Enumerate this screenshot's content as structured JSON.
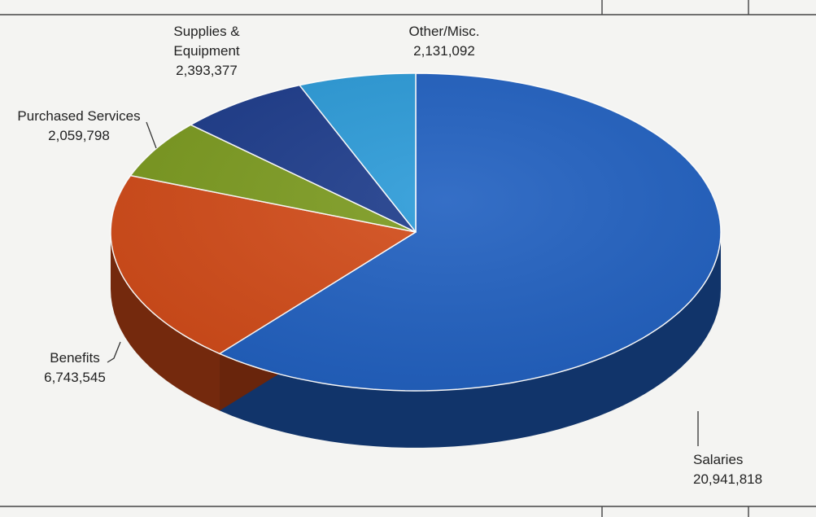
{
  "chart_data": {
    "type": "pie",
    "title": "",
    "three_d": true,
    "start_angle_deg": 90,
    "direction": "clockwise",
    "slices": [
      {
        "category": "Salaries",
        "value": 20941818,
        "value_label": "20,941,818",
        "color": "#1f5fc0"
      },
      {
        "category": "Benefits",
        "value": 6743545,
        "value_label": "6,743,545",
        "color": "#d24a17"
      },
      {
        "category": "Purchased Services",
        "value": 2059798,
        "value_label": "2,059,798",
        "color": "#7b9a1e"
      },
      {
        "category": "Supplies & Equipment",
        "value": 2393377,
        "value_label": "2,393,377",
        "color": "#1b3a8a"
      },
      {
        "category": "Other/Misc.",
        "value": 2131092,
        "value_label": "2,131,092",
        "color": "#2a9ad8"
      }
    ]
  }
}
